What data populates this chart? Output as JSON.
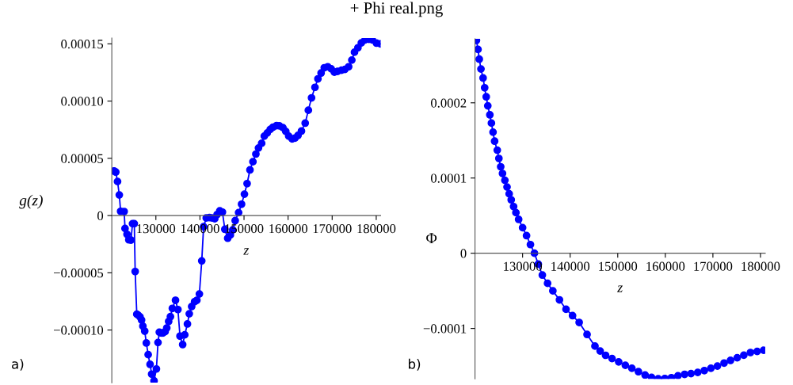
{
  "chart_data": [
    {
      "type": "line",
      "title": "+ Phi real.png",
      "xlabel": "z",
      "ylabel": "g(z)",
      "annotations": [
        "a)"
      ],
      "xlim": [
        120000,
        181000
      ],
      "ylim": [
        -0.000146,
        0.000155
      ],
      "xticks": [
        130000,
        140000,
        150000,
        160000,
        170000,
        180000
      ],
      "yticks": [
        {
          "value": -0.0001,
          "label": "−0.00010"
        },
        {
          "value": -5e-05,
          "label": "−0.00005"
        },
        0,
        {
          "value": 5e-05,
          "label": "0.00005"
        },
        {
          "value": 0.0001,
          "label": "0.00010"
        },
        {
          "value": 0.00015,
          "label": "0.00015"
        }
      ],
      "marker": "circle",
      "line_style": "solid",
      "grid": false,
      "legend": false,
      "series": [
        {
          "color": "#0000ff",
          "x": [
            120500,
            120900,
            121300,
            121700,
            122000,
            122800,
            123000,
            123450,
            123860,
            124350,
            124700,
            125100,
            125300,
            125670,
            126000,
            126400,
            126750,
            127050,
            127470,
            127830,
            128250,
            128680,
            129040,
            129580,
            130120,
            130480,
            130780,
            131200,
            131600,
            132100,
            132470,
            132900,
            133300,
            133740,
            134450,
            135000,
            135470,
            136080,
            136550,
            137160,
            137580,
            138120,
            138790,
            139300,
            139870,
            140410,
            140830,
            141430,
            142150,
            142750,
            143360,
            143900,
            144500,
            145100,
            145650,
            146300,
            146900,
            147450,
            148000,
            148770,
            149440,
            150090,
            150700,
            151350,
            152020,
            152690,
            153280,
            154000,
            154600,
            155270,
            155940,
            156580,
            157380,
            158000,
            158820,
            159480,
            160140,
            160920,
            161560,
            162250,
            163030,
            163880,
            164600,
            165320,
            166100,
            166770,
            167490,
            168210,
            169000,
            169780,
            170500,
            171230,
            172130,
            172900,
            173740,
            174460,
            175070,
            175850,
            176620,
            177470,
            178350,
            179100,
            180050,
            180950
          ],
          "values": [
            3.9e-05,
            3.8e-05,
            2.97e-05,
            1.8e-05,
            3.7e-06,
            3.5e-06,
            -1.13e-05,
            -1.64e-05,
            -2.12e-05,
            -2.14e-05,
            -7.1e-06,
            -7.1e-06,
            -4.89e-05,
            -8.62e-05,
            -8.7e-05,
            -8.85e-05,
            -9.13e-05,
            -9.66e-05,
            -0.000101,
            -0.0001113,
            -0.0001215,
            -0.00013,
            -0.0001385,
            -0.0001443,
            -0.000134,
            -0.0001109,
            -0.0001019,
            -0.0001026,
            -0.0001026,
            -0.0001014,
            -9.82e-05,
            -9.25e-05,
            -8.83e-05,
            -8.11e-05,
            -7.4e-05,
            -8.21e-05,
            -0.0001053,
            -0.0001127,
            -0.0001042,
            -9.47e-05,
            -8.58e-05,
            -7.95e-05,
            -7.52e-05,
            -7.4e-05,
            -6.85e-05,
            -3.96e-05,
            -9.7e-06,
            -2.1e-06,
            -1.8e-06,
            -2.1e-06,
            -2.8e-06,
            9e-07,
            4.1e-06,
            3e-06,
            -1.2e-05,
            -1.98e-05,
            -1.7e-05,
            -1.25e-05,
            -4.4e-06,
            2.6e-06,
            9.9e-06,
            1.87e-05,
            2.79e-05,
            3.99e-05,
            4.7e-05,
            5.37e-05,
            5.9e-05,
            6.31e-05,
            6.94e-05,
            7.21e-05,
            7.52e-05,
            7.72e-05,
            7.86e-05,
            7.84e-05,
            7.68e-05,
            7.35e-05,
            6.94e-05,
            6.69e-05,
            6.76e-05,
            7e-05,
            7.38e-05,
            8.07e-05,
            9.2e-05,
            0.0001028,
            0.000112,
            0.0001194,
            0.0001245,
            0.0001291,
            0.00013,
            0.0001282,
            0.0001252,
            0.000126,
            0.000127,
            0.0001277,
            0.00013,
            0.0001358,
            0.0001427,
            0.0001466,
            0.0001508,
            0.0001535,
            0.000154,
            0.0001535,
            0.0001506,
            0.00015
          ]
        }
      ]
    },
    {
      "type": "line",
      "xlabel": "z",
      "ylabel": "Φ",
      "annotations": [
        "b)"
      ],
      "xlim": [
        120000,
        181000
      ],
      "ylim": [
        -0.000167,
        0.000285
      ],
      "xticks": [
        130000,
        140000,
        150000,
        160000,
        170000,
        180000
      ],
      "yticks": [
        {
          "value": -0.0001,
          "label": "−0.0001"
        },
        0,
        {
          "value": 0.0001,
          "label": "0.0001"
        },
        {
          "value": 0.0002,
          "label": "0.0002"
        }
      ],
      "marker": "circle",
      "line_style": "solid",
      "grid": false,
      "legend": false,
      "series": [
        {
          "color": "#0000ff",
          "x": [
            120300,
            120630,
            120900,
            121250,
            121700,
            122030,
            122360,
            122690,
            123120,
            123450,
            123790,
            124120,
            124680,
            125020,
            125400,
            125780,
            126280,
            126730,
            127180,
            127610,
            128110,
            128600,
            129170,
            130000,
            130830,
            131650,
            132490,
            133300,
            134150,
            135250,
            136360,
            137750,
            139130,
            140500,
            141890,
            143550,
            145210,
            146300,
            147440,
            148800,
            150200,
            151600,
            152970,
            154350,
            155750,
            157100,
            158500,
            159900,
            161280,
            162650,
            164050,
            165400,
            166810,
            168200,
            169580,
            170950,
            172350,
            173700,
            175110,
            176500,
            177890,
            179300,
            180660
          ],
          "values": [
            0.000283,
            0.000271,
            0.000258,
            0.000245,
            0.000233,
            0.00022,
            0.000208,
            0.000196,
            0.000184,
            0.000173,
            0.000161,
            0.000149,
            0.000137,
            0.000126,
            0.000115,
            0.000106,
            9.7e-05,
            8.8e-05,
            7.9e-05,
            7.1e-05,
            6.2e-05,
            5.4e-05,
            4.5e-05,
            3.4e-05,
            2.34e-05,
            1.15e-05,
            0,
            -1.45e-05,
            -2.9e-05,
            -4e-05,
            -5e-05,
            -6.2e-05,
            -7.45e-05,
            -8.3e-05,
            -9.2e-05,
            -0.000108,
            -0.0001235,
            -0.00013,
            -0.0001357,
            -0.00014,
            -0.0001445,
            -0.000149,
            -0.000153,
            -0.0001575,
            -0.000162,
            -0.000165,
            -0.000167,
            -0.0001665,
            -0.0001655,
            -0.000163,
            -0.000161,
            -0.00016,
            -0.0001585,
            -0.000156,
            -0.000153,
            -0.00015,
            -0.000146,
            -0.0001425,
            -0.000139,
            -0.0001355,
            -0.000132,
            -0.0001305,
            -0.000129
          ]
        }
      ]
    }
  ]
}
